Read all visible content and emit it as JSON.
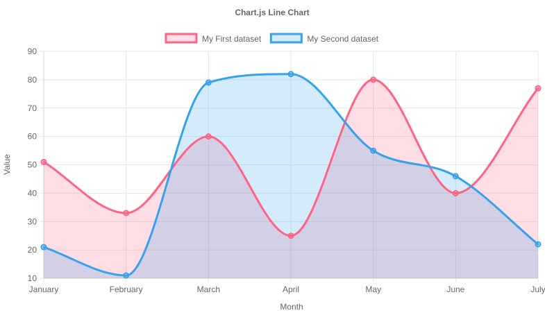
{
  "chart_data": {
    "type": "line",
    "title": "Chart.js Line Chart",
    "xlabel": "Month",
    "ylabel": "Value",
    "categories": [
      "January",
      "February",
      "March",
      "April",
      "May",
      "June",
      "July"
    ],
    "ylim": [
      10,
      90
    ],
    "yticks": [
      10,
      20,
      30,
      40,
      50,
      60,
      70,
      80,
      90
    ],
    "grid": true,
    "legend_position": "top",
    "series": [
      {
        "name": "My First dataset",
        "values": [
          51,
          33,
          60,
          25,
          80,
          40,
          77
        ],
        "color": "#ff6384",
        "fill": "rgba(255,99,132,0.22)"
      },
      {
        "name": "My Second dataset",
        "values": [
          21,
          11,
          79,
          82,
          55,
          46,
          22
        ],
        "color": "#36a2eb",
        "fill": "rgba(54,162,235,0.22)"
      }
    ]
  }
}
